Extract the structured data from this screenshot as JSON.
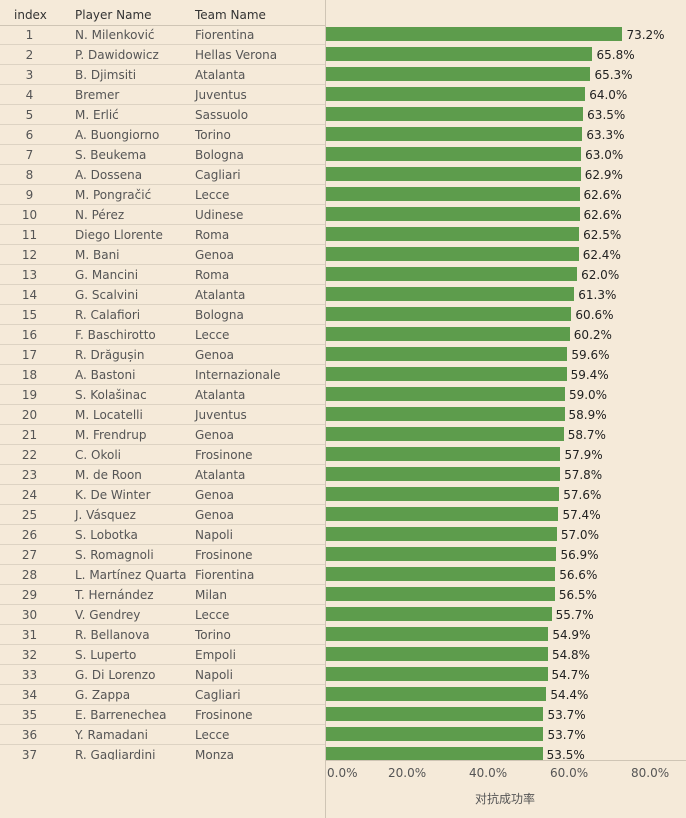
{
  "table": {
    "headers": {
      "index": "index",
      "player": "Player Name",
      "team": "Team Name"
    }
  },
  "chart_data": {
    "type": "bar",
    "orientation": "horizontal",
    "xlabel": "对抗成功率",
    "xlim": [
      0,
      80
    ],
    "ticks": [
      "0.0%",
      "20.0%",
      "40.0%",
      "60.0%",
      "80.0%"
    ],
    "bar_color": "#5d9c4c",
    "grid": false,
    "rows": [
      {
        "index": "1",
        "player": "N. Milenković",
        "team": "Fiorentina",
        "value": 73.2,
        "label": "73.2%"
      },
      {
        "index": "2",
        "player": "P. Dawidowicz",
        "team": "Hellas Verona",
        "value": 65.8,
        "label": "65.8%"
      },
      {
        "index": "3",
        "player": "B. Djimsiti",
        "team": "Atalanta",
        "value": 65.3,
        "label": "65.3%"
      },
      {
        "index": "4",
        "player": "Bremer",
        "team": "Juventus",
        "value": 64.0,
        "label": "64.0%"
      },
      {
        "index": "5",
        "player": "M. Erlić",
        "team": "Sassuolo",
        "value": 63.5,
        "label": "63.5%"
      },
      {
        "index": "6",
        "player": "A. Buongiorno",
        "team": "Torino",
        "value": 63.3,
        "label": "63.3%"
      },
      {
        "index": "7",
        "player": "S. Beukema",
        "team": "Bologna",
        "value": 63.0,
        "label": "63.0%"
      },
      {
        "index": "8",
        "player": "A. Dossena",
        "team": "Cagliari",
        "value": 62.9,
        "label": "62.9%"
      },
      {
        "index": "9",
        "player": "M. Pongračić",
        "team": "Lecce",
        "value": 62.6,
        "label": "62.6%"
      },
      {
        "index": "10",
        "player": "N. Pérez",
        "team": "Udinese",
        "value": 62.6,
        "label": "62.6%"
      },
      {
        "index": "11",
        "player": "Diego Llorente",
        "team": "Roma",
        "value": 62.5,
        "label": "62.5%"
      },
      {
        "index": "12",
        "player": "M. Bani",
        "team": "Genoa",
        "value": 62.4,
        "label": "62.4%"
      },
      {
        "index": "13",
        "player": "G. Mancini",
        "team": "Roma",
        "value": 62.0,
        "label": "62.0%"
      },
      {
        "index": "14",
        "player": "G. Scalvini",
        "team": "Atalanta",
        "value": 61.3,
        "label": "61.3%"
      },
      {
        "index": "15",
        "player": "R. Calafiori",
        "team": "Bologna",
        "value": 60.6,
        "label": "60.6%"
      },
      {
        "index": "16",
        "player": "F. Baschirotto",
        "team": "Lecce",
        "value": 60.2,
        "label": "60.2%"
      },
      {
        "index": "17",
        "player": "R. Drăgușin",
        "team": "Genoa",
        "value": 59.6,
        "label": "59.6%"
      },
      {
        "index": "18",
        "player": "A. Bastoni",
        "team": "Internazionale",
        "value": 59.4,
        "label": "59.4%"
      },
      {
        "index": "19",
        "player": "S. Kolašinac",
        "team": "Atalanta",
        "value": 59.0,
        "label": "59.0%"
      },
      {
        "index": "20",
        "player": "M. Locatelli",
        "team": "Juventus",
        "value": 58.9,
        "label": "58.9%"
      },
      {
        "index": "21",
        "player": "M. Frendrup",
        "team": "Genoa",
        "value": 58.7,
        "label": "58.7%"
      },
      {
        "index": "22",
        "player": "C. Okoli",
        "team": "Frosinone",
        "value": 57.9,
        "label": "57.9%"
      },
      {
        "index": "23",
        "player": "M. de Roon",
        "team": "Atalanta",
        "value": 57.8,
        "label": "57.8%"
      },
      {
        "index": "24",
        "player": "K. De Winter",
        "team": "Genoa",
        "value": 57.6,
        "label": "57.6%"
      },
      {
        "index": "25",
        "player": "J. Vásquez",
        "team": "Genoa",
        "value": 57.4,
        "label": "57.4%"
      },
      {
        "index": "26",
        "player": "S. Lobotka",
        "team": "Napoli",
        "value": 57.0,
        "label": "57.0%"
      },
      {
        "index": "27",
        "player": "S. Romagnoli",
        "team": "Frosinone",
        "value": 56.9,
        "label": "56.9%"
      },
      {
        "index": "28",
        "player": "L. Martínez Quarta",
        "team": "Fiorentina",
        "value": 56.6,
        "label": "56.6%"
      },
      {
        "index": "29",
        "player": "T. Hernández",
        "team": "Milan",
        "value": 56.5,
        "label": "56.5%"
      },
      {
        "index": "30",
        "player": "V. Gendrey",
        "team": "Lecce",
        "value": 55.7,
        "label": "55.7%"
      },
      {
        "index": "31",
        "player": "R. Bellanova",
        "team": "Torino",
        "value": 54.9,
        "label": "54.9%"
      },
      {
        "index": "32",
        "player": "S. Luperto",
        "team": "Empoli",
        "value": 54.8,
        "label": "54.8%"
      },
      {
        "index": "33",
        "player": "G. Di Lorenzo",
        "team": "Napoli",
        "value": 54.7,
        "label": "54.7%"
      },
      {
        "index": "34",
        "player": "G. Zappa",
        "team": "Cagliari",
        "value": 54.4,
        "label": "54.4%"
      },
      {
        "index": "35",
        "player": "E. Barrenechea",
        "team": "Frosinone",
        "value": 53.7,
        "label": "53.7%"
      },
      {
        "index": "36",
        "player": "Y. Ramadani",
        "team": "Lecce",
        "value": 53.7,
        "label": "53.7%"
      },
      {
        "index": "37",
        "player": "R. Gagliardini",
        "team": "Monza",
        "value": 53.5,
        "label": "53.5%"
      }
    ]
  }
}
